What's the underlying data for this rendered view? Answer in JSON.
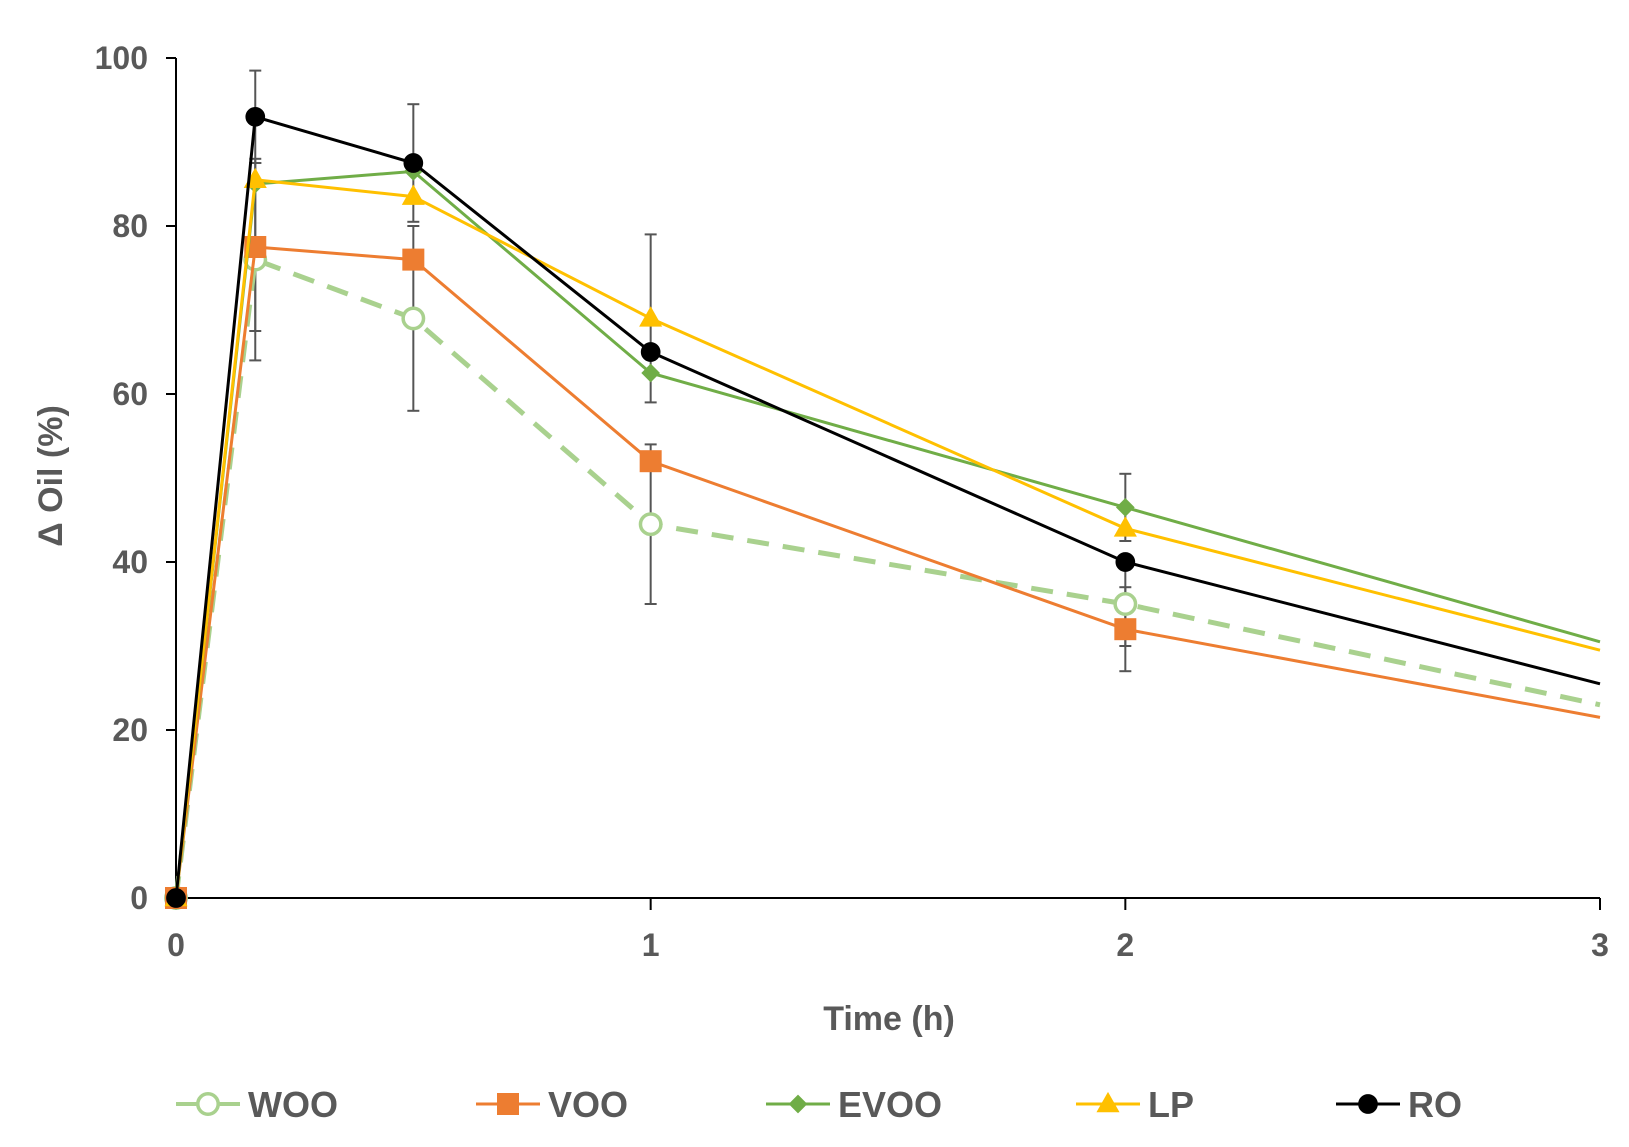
{
  "chart_data": {
    "type": "line",
    "title": "",
    "xlabel": "Time (h)",
    "ylabel": "Δ Oil (%)",
    "xlim": [
      0,
      3
    ],
    "ylim": [
      0,
      100
    ],
    "x_ticks": [
      "0",
      "1",
      "2",
      "3"
    ],
    "x_tick_values": [
      0,
      1,
      2,
      3
    ],
    "y_ticks": [
      "0",
      "20",
      "40",
      "60",
      "80",
      "100"
    ],
    "y_tick_values": [
      0,
      20,
      40,
      60,
      80,
      100
    ],
    "grid": false,
    "legend_position": "bottom",
    "x": [
      0,
      0.167,
      0.5,
      1,
      2,
      3
    ],
    "series": [
      {
        "name": "WOO",
        "color": "#a9d18e",
        "marker": "open-circle",
        "line": "dashed",
        "values": [
          0,
          76,
          69,
          44.5,
          35,
          23
        ],
        "errors": [
          0,
          12,
          11,
          9.5,
          5,
          0
        ]
      },
      {
        "name": "VOO",
        "color": "#ed7d31",
        "marker": "square",
        "line": "solid",
        "values": [
          0,
          77.5,
          76,
          52,
          32,
          21.5
        ],
        "errors": [
          0,
          10,
          0,
          0,
          5,
          0
        ]
      },
      {
        "name": "EVOO",
        "color": "#70ad47",
        "marker": "diamond",
        "line": "solid",
        "values": [
          0,
          85,
          86.5,
          62.5,
          46.5,
          30.5
        ],
        "errors": [
          0,
          0,
          0,
          0,
          4,
          0
        ]
      },
      {
        "name": "LP",
        "color": "#ffc000",
        "marker": "triangle",
        "line": "solid",
        "values": [
          0,
          85.5,
          83.5,
          69,
          44,
          29.5
        ],
        "errors": [
          0,
          0,
          0,
          10,
          0,
          0
        ]
      },
      {
        "name": "RO",
        "color": "#000000",
        "marker": "filled-circle",
        "line": "solid",
        "values": [
          0,
          93,
          87.5,
          65,
          40,
          25.5
        ],
        "errors": [
          0,
          5.5,
          7,
          0,
          0,
          0
        ]
      }
    ]
  }
}
